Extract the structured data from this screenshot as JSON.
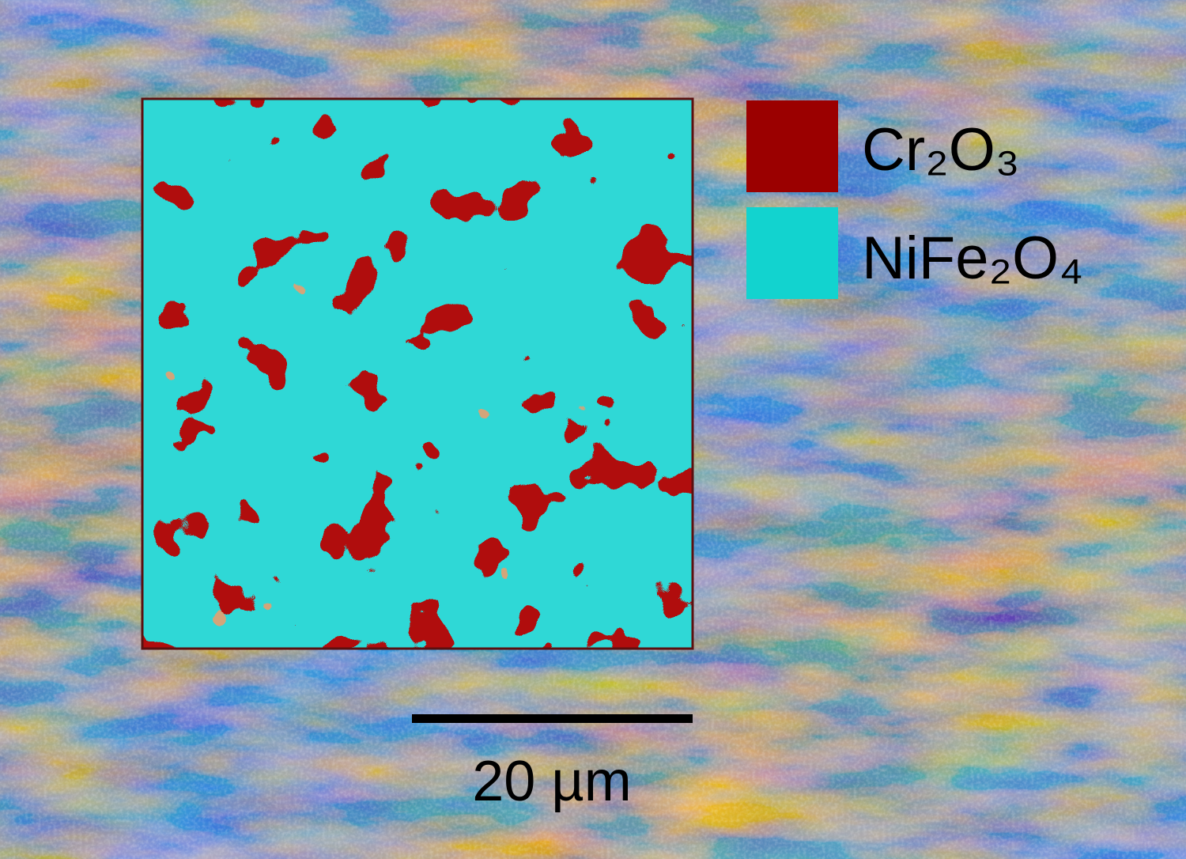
{
  "legend": {
    "items": [
      {
        "label": "Cr₂O₃",
        "color": "#9b0000"
      },
      {
        "label": "NiFe₂O₄",
        "color": "#12d3cf"
      }
    ]
  },
  "scale_bar": {
    "label": "20 µm"
  }
}
